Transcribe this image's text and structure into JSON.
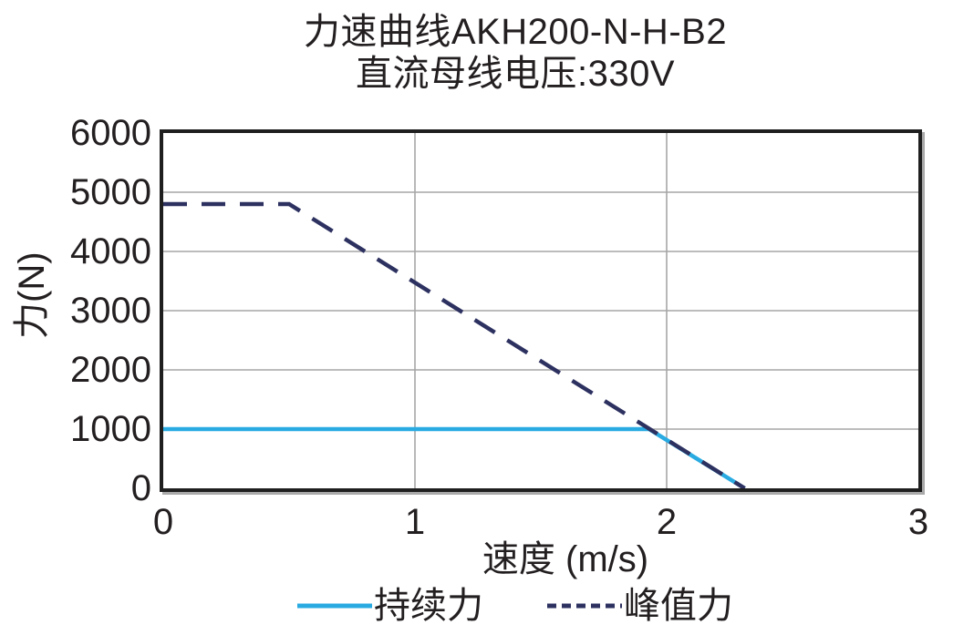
{
  "page": {
    "background": "#ffffff",
    "text_color": "#231f20"
  },
  "chart_data": {
    "type": "line",
    "title": "力速曲线AKH200-N-H-B2",
    "subtitle": "直流母线电压:330V",
    "xlabel": "速度 (m/s)",
    "ylabel": "力(N)",
    "xlim": [
      0,
      3
    ],
    "ylim": [
      0,
      6000
    ],
    "xticks": [
      0,
      1,
      2,
      3
    ],
    "yticks": [
      0,
      1000,
      2000,
      3000,
      4000,
      5000,
      6000
    ],
    "grid": true,
    "grid_color": "#a6a6a6",
    "axis_color": "#1f1f1f",
    "legend_position": "bottom",
    "series": [
      {
        "id": "continuous-force",
        "name": "持续力",
        "color": "#29abe2",
        "style": "solid",
        "points": [
          [
            0,
            1000
          ],
          [
            1.93,
            1000
          ],
          [
            2.31,
            0
          ]
        ]
      },
      {
        "id": "peak-force",
        "name": "峰值力",
        "color": "#2d3160",
        "style": "dashed",
        "points": [
          [
            0,
            4800
          ],
          [
            0.5,
            4800
          ],
          [
            2.31,
            0
          ]
        ]
      }
    ]
  }
}
